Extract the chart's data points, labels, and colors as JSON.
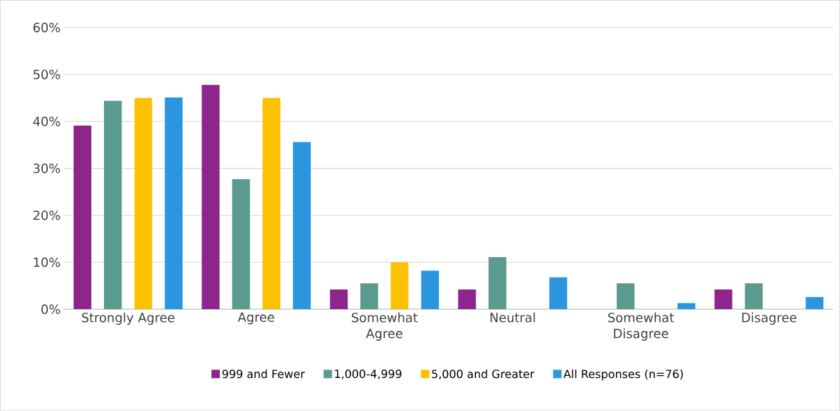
{
  "chart_data": {
    "type": "bar",
    "categories": [
      "Strongly Agree",
      "Agree",
      "Somewhat Agree",
      "Neutral",
      "Somewhat Disagree",
      "Disagree"
    ],
    "series": [
      {
        "name": "999 and Fewer",
        "color": "#8e258d",
        "values": [
          39.1,
          47.8,
          4.2,
          4.2,
          null,
          4.2
        ]
      },
      {
        "name": "1,000-4,999",
        "color": "#5b9a8f",
        "values": [
          44.4,
          27.7,
          5.5,
          11.1,
          5.5,
          5.5
        ]
      },
      {
        "name": "5,000 and Greater",
        "color": "#ffc000",
        "values": [
          45.0,
          45.0,
          10.0,
          null,
          null,
          null
        ]
      },
      {
        "name": "All Responses (n=76)",
        "color": "#2a96e0",
        "values": [
          45.1,
          35.6,
          8.2,
          6.8,
          1.3,
          2.6
        ]
      }
    ],
    "ylim": [
      0,
      60
    ],
    "yticks": [
      {
        "value": 0,
        "label": "0%"
      },
      {
        "value": 10,
        "label": "10%"
      },
      {
        "value": 20,
        "label": "20%"
      },
      {
        "value": 30,
        "label": "30%"
      },
      {
        "value": 40,
        "label": "40%"
      },
      {
        "value": 50,
        "label": "50%"
      },
      {
        "value": 60,
        "label": "60%"
      }
    ],
    "grid": "y",
    "legend": "bottom"
  }
}
